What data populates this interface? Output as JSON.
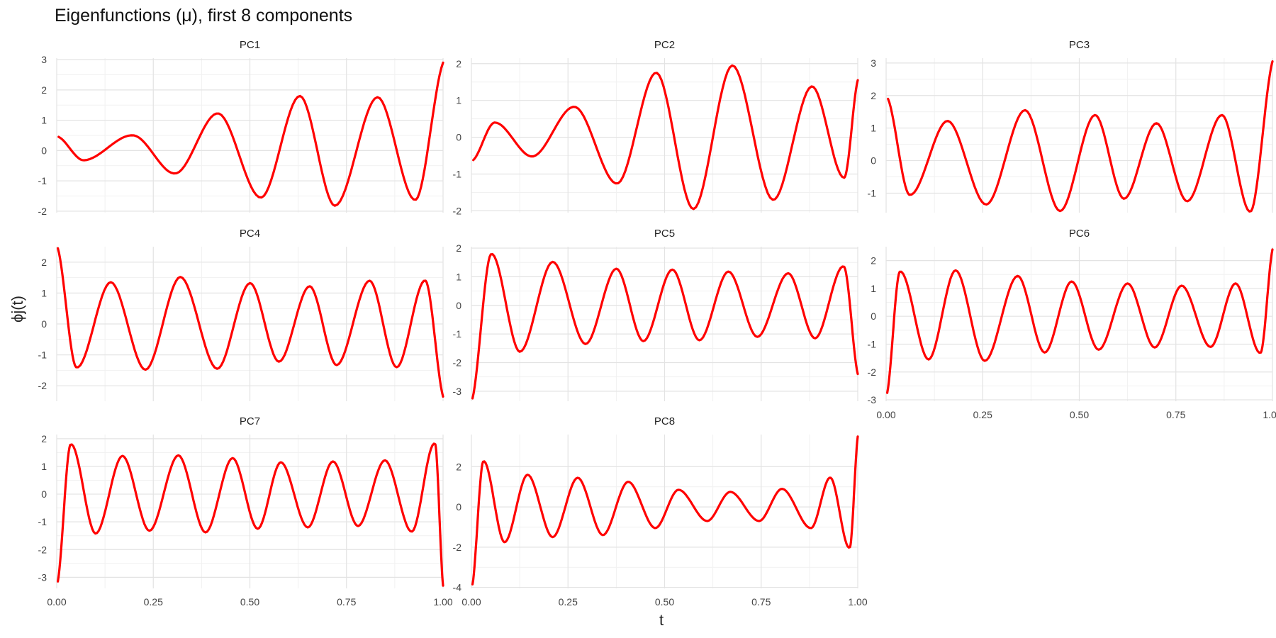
{
  "title": "Eigenfunctions (μ), first 8 components",
  "ylabel": "ϕj(t)",
  "xlabel": "t",
  "line_color": "#ff0000",
  "chart_data": {
    "type": "line",
    "title": "Eigenfunctions (μ), first 8 components",
    "xlabel": "t",
    "ylabel": "ϕj(t)",
    "xlim": [
      0,
      1
    ],
    "x_ticks": [
      "0.00",
      "0.25",
      "0.50",
      "0.75",
      "1.00"
    ],
    "grid": true,
    "legend": "none",
    "series": [
      {
        "name": "PC1",
        "ylim": [
          -2.05,
          3.05
        ],
        "y_ticks": [
          -2,
          -1,
          0,
          1,
          2,
          3
        ],
        "x": [
          0.005,
          0.07,
          0.2,
          0.31,
          0.42,
          0.53,
          0.63,
          0.72,
          0.83,
          0.93,
          1.0
        ],
        "y": [
          0.45,
          -0.32,
          0.5,
          -0.75,
          1.22,
          -1.55,
          1.8,
          -1.82,
          1.76,
          -1.62,
          2.9
        ]
      },
      {
        "name": "PC2",
        "ylim": [
          -2.05,
          2.15
        ],
        "y_ticks": [
          -2,
          -1,
          0,
          1,
          2
        ],
        "x": [
          0.005,
          0.06,
          0.16,
          0.27,
          0.38,
          0.48,
          0.575,
          0.675,
          0.78,
          0.88,
          0.965,
          1.0
        ],
        "y": [
          -0.62,
          0.4,
          -0.52,
          0.82,
          -1.25,
          1.75,
          -1.95,
          1.95,
          -1.7,
          1.38,
          -1.1,
          1.55
        ]
      },
      {
        "name": "PC3",
        "ylim": [
          -1.6,
          3.15
        ],
        "y_ticks": [
          -1,
          0,
          1,
          2,
          3
        ],
        "x": [
          0.005,
          0.06,
          0.16,
          0.26,
          0.36,
          0.45,
          0.54,
          0.615,
          0.7,
          0.78,
          0.87,
          0.945,
          1.0
        ],
        "y": [
          1.9,
          -1.05,
          1.22,
          -1.35,
          1.55,
          -1.55,
          1.4,
          -1.17,
          1.15,
          -1.25,
          1.4,
          -1.55,
          3.05
        ]
      },
      {
        "name": "PC4",
        "ylim": [
          -2.5,
          2.5
        ],
        "y_ticks": [
          -2,
          -1,
          0,
          1,
          2
        ],
        "x": [
          0.003,
          0.05,
          0.14,
          0.23,
          0.32,
          0.415,
          0.5,
          0.575,
          0.655,
          0.725,
          0.81,
          0.88,
          0.955,
          1.0
        ],
        "y": [
          2.45,
          -1.4,
          1.35,
          -1.48,
          1.52,
          -1.45,
          1.32,
          -1.22,
          1.22,
          -1.33,
          1.4,
          -1.4,
          1.4,
          -2.35
        ]
      },
      {
        "name": "PC5",
        "ylim": [
          -3.35,
          2.05
        ],
        "y_ticks": [
          -3,
          -2,
          -1,
          0,
          1,
          2
        ],
        "x": [
          0.003,
          0.05,
          0.125,
          0.21,
          0.295,
          0.375,
          0.445,
          0.52,
          0.59,
          0.665,
          0.74,
          0.82,
          0.89,
          0.965,
          1.0
        ],
        "y": [
          -3.25,
          1.78,
          -1.62,
          1.52,
          -1.35,
          1.28,
          -1.25,
          1.25,
          -1.22,
          1.18,
          -1.1,
          1.12,
          -1.15,
          1.35,
          -2.4
        ]
      },
      {
        "name": "PC6",
        "ylim": [
          -3.05,
          2.5
        ],
        "y_ticks": [
          -3,
          -2,
          -1,
          0,
          1,
          2
        ],
        "x": [
          0.003,
          0.035,
          0.11,
          0.18,
          0.255,
          0.34,
          0.41,
          0.48,
          0.55,
          0.625,
          0.695,
          0.765,
          0.84,
          0.905,
          0.97,
          1.0
        ],
        "y": [
          -2.75,
          1.6,
          -1.55,
          1.65,
          -1.6,
          1.45,
          -1.3,
          1.25,
          -1.2,
          1.18,
          -1.12,
          1.1,
          -1.1,
          1.18,
          -1.3,
          2.4
        ]
      },
      {
        "name": "PC7",
        "ylim": [
          -3.4,
          2.15
        ],
        "y_ticks": [
          -3,
          -2,
          -1,
          0,
          1,
          2
        ],
        "x": [
          0.003,
          0.035,
          0.1,
          0.17,
          0.24,
          0.315,
          0.385,
          0.455,
          0.52,
          0.58,
          0.65,
          0.715,
          0.78,
          0.85,
          0.92,
          0.98,
          1.0
        ],
        "y": [
          -3.15,
          1.78,
          -1.42,
          1.38,
          -1.32,
          1.4,
          -1.38,
          1.3,
          -1.25,
          1.15,
          -1.2,
          1.18,
          -1.15,
          1.22,
          -1.35,
          1.8,
          -3.3
        ]
      },
      {
        "name": "PC8",
        "ylim": [
          -4.05,
          3.6
        ],
        "y_ticks": [
          -4,
          -2,
          0,
          2
        ],
        "x": [
          0.003,
          0.03,
          0.085,
          0.145,
          0.21,
          0.275,
          0.34,
          0.405,
          0.475,
          0.535,
          0.61,
          0.67,
          0.745,
          0.805,
          0.88,
          0.93,
          0.98,
          1.0
        ],
        "y": [
          -3.85,
          2.25,
          -1.75,
          1.6,
          -1.5,
          1.45,
          -1.4,
          1.25,
          -1.05,
          0.85,
          -0.7,
          0.75,
          -0.7,
          0.9,
          -1.05,
          1.45,
          -2.0,
          3.5
        ]
      }
    ]
  }
}
